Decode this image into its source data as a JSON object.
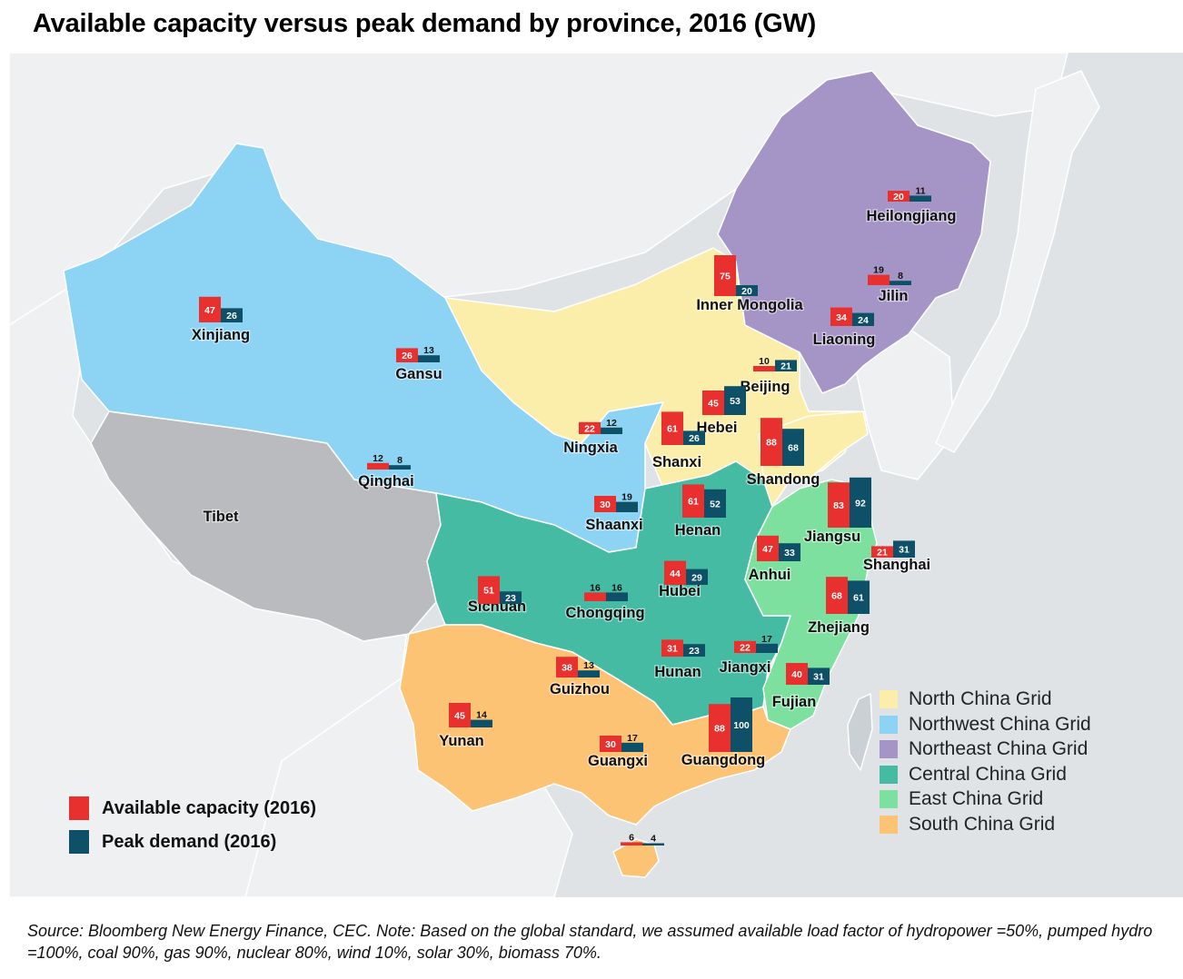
{
  "title": "Available capacity versus peak demand by province, 2016 (GW)",
  "source_note": "Source: Bloomberg New Energy Finance, CEC. Note: Based on the global standard, we assumed available load factor of hydropower =50%, pumped hydro  =100%, coal 90%, gas 90%, nuclear 80%, wind 10%, solar 30%, biomass 70%.",
  "colors": {
    "available": "#e8312f",
    "peak": "#0d5068",
    "sea": "#dfe3e6",
    "neighbor_land": "#eef0f1"
  },
  "grids": [
    {
      "id": "north",
      "label": "North China Grid",
      "color": "#fbeeab"
    },
    {
      "id": "northwest",
      "label": "Northwest China Grid",
      "color": "#8dd3f3"
    },
    {
      "id": "northeast",
      "label": "Northeast China Grid",
      "color": "#a594c6"
    },
    {
      "id": "central",
      "label": "Central China Grid",
      "color": "#46bba4"
    },
    {
      "id": "east",
      "label": "East China Grid",
      "color": "#7de09e"
    },
    {
      "id": "south",
      "label": "South China Grid",
      "color": "#fdc374"
    }
  ],
  "tibet": {
    "label": "Tibet",
    "color": "#b9bbbe"
  },
  "series_legend": [
    {
      "label": "Available capacity (2016)",
      "color": "#e8312f"
    },
    {
      "label": "Peak demand (2016)",
      "color": "#0d5068"
    }
  ],
  "chart_data": {
    "type": "bar",
    "unit": "GW",
    "title": "Available capacity versus peak demand by province, 2016 (GW)",
    "series": [
      {
        "name": "Available capacity (2016)",
        "values": [
          20,
          19,
          34,
          75,
          10,
          45,
          61,
          88,
          22,
          12,
          26,
          47,
          30,
          61,
          83,
          21,
          47,
          68,
          40,
          51,
          16,
          44,
          31,
          22,
          88,
          45,
          38,
          30,
          6
        ]
      },
      {
        "name": "Peak demand (2016)",
        "values": [
          11,
          8,
          24,
          20,
          21,
          53,
          26,
          68,
          12,
          8,
          13,
          26,
          19,
          52,
          92,
          31,
          33,
          61,
          31,
          23,
          16,
          29,
          23,
          17,
          100,
          14,
          13,
          17,
          4
        ]
      }
    ],
    "provinces": [
      {
        "name": "Heilongjiang",
        "grid": "northeast",
        "available": 20,
        "peak": 11
      },
      {
        "name": "Jilin",
        "grid": "northeast",
        "available": 19,
        "peak": 8
      },
      {
        "name": "Liaoning",
        "grid": "northeast",
        "available": 34,
        "peak": 24
      },
      {
        "name": "Inner Mongolia",
        "grid": "north",
        "available": 75,
        "peak": 20
      },
      {
        "name": "Beijing",
        "grid": "north",
        "available": 10,
        "peak": 21
      },
      {
        "name": "Hebei",
        "grid": "north",
        "available": 45,
        "peak": 53
      },
      {
        "name": "Shanxi",
        "grid": "north",
        "available": 61,
        "peak": 26
      },
      {
        "name": "Shandong",
        "grid": "north",
        "available": 88,
        "peak": 68
      },
      {
        "name": "Ningxia",
        "grid": "northwest",
        "available": 22,
        "peak": 12
      },
      {
        "name": "Qinghai",
        "grid": "northwest",
        "available": 12,
        "peak": 8
      },
      {
        "name": "Gansu",
        "grid": "northwest",
        "available": 26,
        "peak": 13
      },
      {
        "name": "Xinjiang",
        "grid": "northwest",
        "available": 47,
        "peak": 26
      },
      {
        "name": "Shaanxi",
        "grid": "northwest",
        "available": 30,
        "peak": 19
      },
      {
        "name": "Henan",
        "grid": "central",
        "available": 61,
        "peak": 52
      },
      {
        "name": "Jiangsu",
        "grid": "east",
        "available": 83,
        "peak": 92
      },
      {
        "name": "Shanghai",
        "grid": "east",
        "available": 21,
        "peak": 31
      },
      {
        "name": "Anhui",
        "grid": "east",
        "available": 47,
        "peak": 33
      },
      {
        "name": "Zhejiang",
        "grid": "east",
        "available": 68,
        "peak": 61
      },
      {
        "name": "Fujian",
        "grid": "east",
        "available": 40,
        "peak": 31
      },
      {
        "name": "Sichuan",
        "grid": "central",
        "available": 51,
        "peak": 23
      },
      {
        "name": "Chongqing",
        "grid": "central",
        "available": 16,
        "peak": 16
      },
      {
        "name": "Hubei",
        "grid": "central",
        "available": 44,
        "peak": 29
      },
      {
        "name": "Hunan",
        "grid": "central",
        "available": 31,
        "peak": 23
      },
      {
        "name": "Jiangxi",
        "grid": "central",
        "available": 22,
        "peak": 17
      },
      {
        "name": "Guangdong",
        "grid": "south",
        "available": 88,
        "peak": 100
      },
      {
        "name": "Yunan",
        "grid": "south",
        "available": 45,
        "peak": 14
      },
      {
        "name": "Guizhou",
        "grid": "south",
        "available": 38,
        "peak": 13
      },
      {
        "name": "Guangxi",
        "grid": "south",
        "available": 30,
        "peak": 17
      },
      {
        "name": "",
        "grid": "south",
        "available": 6,
        "peak": 4
      }
    ]
  }
}
